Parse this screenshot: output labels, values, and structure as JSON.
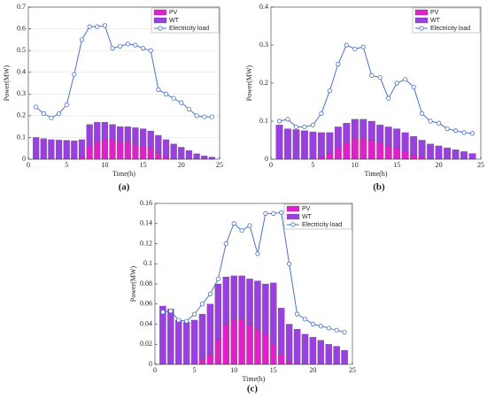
{
  "chart_data": [
    {
      "type": "bar-line",
      "caption": "(a)",
      "x_label": "Time(h)",
      "y_label": "Power(MW)",
      "x": [
        1,
        2,
        3,
        4,
        5,
        6,
        7,
        8,
        9,
        10,
        11,
        12,
        13,
        14,
        15,
        16,
        17,
        18,
        19,
        20,
        21,
        22,
        23,
        24
      ],
      "xlim": [
        0,
        25
      ],
      "xticks": [
        0,
        5,
        10,
        15,
        20,
        25
      ],
      "ylim": [
        0,
        0.7
      ],
      "yticks": [
        0,
        0.1,
        0.2,
        0.3,
        0.4,
        0.5,
        0.6,
        0.7
      ],
      "grid": true,
      "legend": "upper right",
      "series": [
        {
          "name": "PV",
          "color": "#e020c8",
          "values": [
            0,
            0,
            0,
            0,
            0,
            0,
            0.01,
            0.06,
            0.08,
            0.09,
            0.09,
            0.08,
            0.08,
            0.07,
            0.06,
            0.05,
            0.03,
            0.01,
            0,
            0,
            0,
            0,
            0,
            0
          ]
        },
        {
          "name": "WT",
          "color": "#9a40e0",
          "values": [
            0.1,
            0.095,
            0.09,
            0.088,
            0.087,
            0.085,
            0.08,
            0.1,
            0.09,
            0.08,
            0.07,
            0.07,
            0.07,
            0.075,
            0.08,
            0.08,
            0.08,
            0.08,
            0.07,
            0.055,
            0.04,
            0.025,
            0.015,
            0.01
          ]
        },
        {
          "name": "Electricity load",
          "color": "#4a72c4",
          "values": [
            0.24,
            0.21,
            0.19,
            0.21,
            0.25,
            0.39,
            0.55,
            0.61,
            0.61,
            0.615,
            0.51,
            0.52,
            0.53,
            0.525,
            0.51,
            0.5,
            0.32,
            0.3,
            0.28,
            0.26,
            0.23,
            0.2,
            0.195,
            0.195
          ]
        }
      ]
    },
    {
      "type": "bar-line",
      "caption": "(b)",
      "x_label": "Time(h)",
      "y_label": "Power(MW)",
      "x": [
        1,
        2,
        3,
        4,
        5,
        6,
        7,
        8,
        9,
        10,
        11,
        12,
        13,
        14,
        15,
        16,
        17,
        18,
        19,
        20,
        21,
        22,
        23,
        24
      ],
      "xlim": [
        0,
        25
      ],
      "xticks": [
        0,
        5,
        10,
        15,
        20,
        25
      ],
      "ylim": [
        0,
        0.4
      ],
      "yticks": [
        0,
        0.1,
        0.2,
        0.3,
        0.4
      ],
      "grid": false,
      "legend": "upper right",
      "series": [
        {
          "name": "PV",
          "color": "#e020c8",
          "values": [
            0,
            0,
            0,
            0,
            0,
            0.005,
            0.015,
            0.03,
            0.045,
            0.055,
            0.055,
            0.05,
            0.045,
            0.035,
            0.03,
            0.02,
            0.01,
            0.005,
            0,
            0,
            0,
            0,
            0,
            0
          ]
        },
        {
          "name": "WT",
          "color": "#9a40e0",
          "values": [
            0.09,
            0.08,
            0.078,
            0.075,
            0.072,
            0.065,
            0.055,
            0.055,
            0.05,
            0.05,
            0.05,
            0.05,
            0.045,
            0.05,
            0.05,
            0.05,
            0.05,
            0.045,
            0.04,
            0.035,
            0.03,
            0.025,
            0.02,
            0.015
          ]
        },
        {
          "name": "Electricity load",
          "color": "#4a72c4",
          "values": [
            0.1,
            0.105,
            0.085,
            0.085,
            0.09,
            0.12,
            0.18,
            0.25,
            0.3,
            0.29,
            0.295,
            0.22,
            0.215,
            0.16,
            0.2,
            0.21,
            0.19,
            0.12,
            0.1,
            0.095,
            0.08,
            0.075,
            0.07,
            0.068
          ]
        }
      ]
    },
    {
      "type": "bar-line",
      "caption": "(c)",
      "x_label": "Time(h)",
      "y_label": "Power(MW)",
      "x": [
        1,
        2,
        3,
        4,
        5,
        6,
        7,
        8,
        9,
        10,
        11,
        12,
        13,
        14,
        15,
        16,
        17,
        18,
        19,
        20,
        21,
        22,
        23,
        24
      ],
      "xlim": [
        0,
        25
      ],
      "xticks": [
        0,
        5,
        10,
        15,
        20,
        25
      ],
      "ylim": [
        0,
        0.16
      ],
      "yticks": [
        0,
        0.02,
        0.04,
        0.06,
        0.08,
        0.1,
        0.12,
        0.14,
        0.16
      ],
      "grid": false,
      "legend": "upper right",
      "series": [
        {
          "name": "PV",
          "color": "#e020c8",
          "values": [
            0,
            0,
            0,
            0,
            0,
            0.005,
            0.01,
            0.025,
            0.04,
            0.045,
            0.045,
            0.04,
            0.035,
            0.03,
            0.02,
            0.01,
            0.003,
            0,
            0,
            0,
            0,
            0,
            0,
            0
          ]
        },
        {
          "name": "WT",
          "color": "#9a40e0",
          "values": [
            0.058,
            0.055,
            0.044,
            0.042,
            0.044,
            0.045,
            0.05,
            0.055,
            0.047,
            0.043,
            0.043,
            0.045,
            0.048,
            0.05,
            0.061,
            0.046,
            0.037,
            0.035,
            0.03,
            0.027,
            0.024,
            0.02,
            0.018,
            0.014
          ]
        },
        {
          "name": "Electricity load",
          "color": "#4a72c4",
          "values": [
            0.052,
            0.053,
            0.044,
            0.043,
            0.05,
            0.06,
            0.07,
            0.085,
            0.12,
            0.14,
            0.133,
            0.138,
            0.11,
            0.15,
            0.15,
            0.151,
            0.1,
            0.05,
            0.045,
            0.04,
            0.038,
            0.036,
            0.034,
            0.032
          ]
        }
      ]
    }
  ]
}
